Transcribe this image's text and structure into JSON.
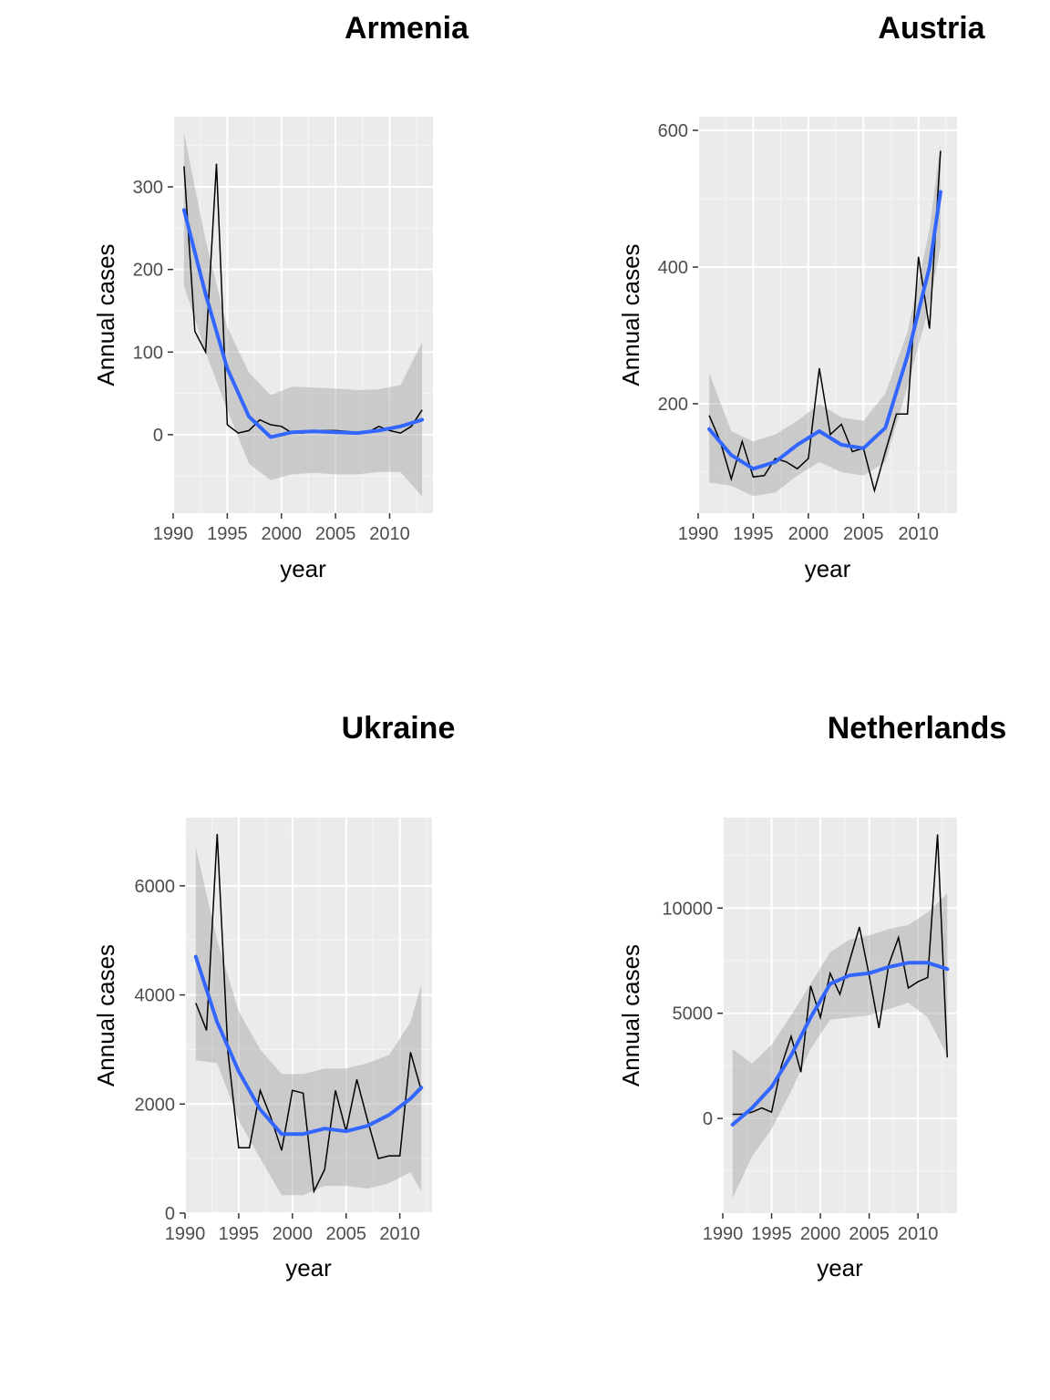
{
  "chart_data": [
    {
      "type": "line",
      "title": "Armenia",
      "xlabel": "year",
      "ylabel": "Annual cases",
      "xlim": [
        1990,
        2014
      ],
      "ylim": [
        -95,
        385
      ],
      "xticks": [
        1990,
        1995,
        2000,
        2005,
        2010
      ],
      "xtick_labels": [
        "1990",
        "1995",
        "2000",
        "2005",
        "2010"
      ],
      "yticks": [
        0,
        100,
        200,
        300
      ],
      "ytick_labels": [
        "0",
        "100",
        "200",
        "300"
      ],
      "grid": true,
      "series": [
        {
          "x": [
            1991,
            1992,
            1993,
            1994,
            1995,
            1996,
            1997,
            1998,
            1999,
            2000,
            2001,
            2002,
            2003,
            2004,
            2005,
            2006,
            2007,
            2008,
            2009,
            2010,
            2011,
            2012,
            2013
          ],
          "values": [
            325,
            125,
            100,
            328,
            12,
            2,
            5,
            18,
            12,
            10,
            2,
            2,
            5,
            5,
            5,
            4,
            3,
            3,
            10,
            5,
            2,
            10,
            30
          ]
        }
      ],
      "smooth": {
        "x": [
          1991,
          1993,
          1995,
          1997,
          1999,
          2001,
          2003,
          2005,
          2007,
          2009,
          2011,
          2013
        ],
        "y": [
          272,
          170,
          80,
          22,
          -3,
          3,
          4,
          3,
          2,
          5,
          10,
          18
        ],
        "lower": [
          180,
          100,
          30,
          -35,
          -55,
          -48,
          -46,
          -48,
          -48,
          -45,
          -45,
          -75
        ],
        "upper": [
          365,
          235,
          130,
          75,
          48,
          58,
          57,
          56,
          54,
          55,
          60,
          112
        ]
      }
    },
    {
      "type": "line",
      "title": "Austria",
      "xlabel": "year",
      "ylabel": "Annual cases",
      "xlim": [
        1990,
        2013.5
      ],
      "ylim": [
        40,
        620
      ],
      "xticks": [
        1990,
        1995,
        2000,
        2005,
        2010
      ],
      "xtick_labels": [
        "1990",
        "1995",
        "2000",
        "2005",
        "2010"
      ],
      "yticks": [
        200,
        400,
        600
      ],
      "ytick_labels": [
        "200",
        "400",
        "600"
      ],
      "grid": true,
      "series": [
        {
          "x": [
            1991,
            1992,
            1993,
            1994,
            1995,
            1996,
            1997,
            1998,
            1999,
            2000,
            2001,
            2002,
            2003,
            2004,
            2005,
            2006,
            2007,
            2008,
            2009,
            2010,
            2011,
            2012
          ],
          "values": [
            183,
            145,
            90,
            145,
            93,
            95,
            120,
            115,
            105,
            120,
            252,
            155,
            170,
            130,
            135,
            73,
            130,
            185,
            185,
            415,
            310,
            570
          ]
        }
      ],
      "smooth": {
        "x": [
          1991,
          1993,
          1995,
          1997,
          1999,
          2001,
          2003,
          2005,
          2007,
          2009,
          2011,
          2012
        ],
        "y": [
          163,
          125,
          105,
          115,
          140,
          160,
          140,
          135,
          165,
          270,
          400,
          510
        ],
        "lower": [
          85,
          80,
          65,
          70,
          95,
          115,
          100,
          95,
          115,
          225,
          345,
          430
        ],
        "upper": [
          245,
          160,
          145,
          155,
          175,
          200,
          180,
          175,
          215,
          305,
          455,
          580
        ]
      }
    },
    {
      "type": "line",
      "title": "Ukraine",
      "xlabel": "year",
      "ylabel": "Annual cases",
      "xlim": [
        1990,
        2013
      ],
      "ylim": [
        0,
        7250
      ],
      "xticks": [
        1990,
        1995,
        2000,
        2005,
        2010
      ],
      "xtick_labels": [
        "1990",
        "1995",
        "2000",
        "2005",
        "2010"
      ],
      "yticks": [
        0,
        2000,
        4000,
        6000
      ],
      "ytick_labels": [
        "0",
        "2000",
        "4000",
        "6000"
      ],
      "grid": true,
      "series": [
        {
          "x": [
            1991,
            1992,
            1993,
            1994,
            1995,
            1996,
            1997,
            1998,
            1999,
            2000,
            2001,
            2002,
            2003,
            2004,
            2005,
            2006,
            2007,
            2008,
            2009,
            2010,
            2011,
            2012
          ],
          "values": [
            3850,
            3350,
            6950,
            2950,
            1200,
            1200,
            2250,
            1750,
            1150,
            2250,
            2200,
            400,
            800,
            2250,
            1500,
            2450,
            1700,
            1000,
            1050,
            1050,
            2950,
            2250
          ]
        }
      ],
      "smooth": {
        "x": [
          1991,
          1993,
          1995,
          1997,
          1999,
          2001,
          2003,
          2005,
          2007,
          2009,
          2011,
          2012
        ],
        "y": [
          4700,
          3500,
          2600,
          1900,
          1450,
          1450,
          1550,
          1500,
          1600,
          1800,
          2100,
          2300
        ],
        "lower": [
          2800,
          2750,
          1700,
          1000,
          330,
          330,
          500,
          500,
          450,
          550,
          750,
          400
        ],
        "upper": [
          6700,
          5000,
          3700,
          3000,
          2550,
          2550,
          2650,
          2650,
          2750,
          2900,
          3500,
          4200
        ]
      }
    },
    {
      "type": "line",
      "title": "Netherlands",
      "xlabel": "year",
      "ylabel": "Annual cases",
      "xlim": [
        1990,
        2014
      ],
      "ylim": [
        -4500,
        14300
      ],
      "xticks": [
        1990,
        1995,
        2000,
        2005,
        2010
      ],
      "xtick_labels": [
        "1990",
        "1995",
        "2000",
        "2005",
        "2010"
      ],
      "yticks": [
        0,
        5000,
        10000
      ],
      "ytick_labels": [
        "0",
        "5000",
        "10000"
      ],
      "grid": true,
      "series": [
        {
          "x": [
            1991,
            1992,
            1993,
            1994,
            1995,
            1996,
            1997,
            1998,
            1999,
            2000,
            2001,
            2002,
            2003,
            2004,
            2005,
            2006,
            2007,
            2008,
            2009,
            2010,
            2011,
            2012,
            2013
          ],
          "values": [
            200,
            200,
            300,
            500,
            300,
            2500,
            3900,
            2200,
            6300,
            4800,
            6900,
            5900,
            7500,
            9100,
            6800,
            4300,
            7300,
            8600,
            6200,
            6500,
            6700,
            13500,
            2900
          ]
        }
      ],
      "smooth": {
        "x": [
          1991,
          1993,
          1995,
          1997,
          1999,
          2001,
          2003,
          2005,
          2007,
          2009,
          2011,
          2013
        ],
        "y": [
          -300,
          500,
          1500,
          3000,
          4800,
          6400,
          6800,
          6900,
          7200,
          7400,
          7400,
          7100
        ],
        "lower": [
          -3800,
          -1800,
          -500,
          1300,
          3300,
          4700,
          4800,
          4900,
          5200,
          5500,
          4800,
          3000
        ],
        "upper": [
          3300,
          2600,
          3500,
          4900,
          6400,
          7900,
          8500,
          8700,
          9000,
          9200,
          9800,
          10700
        ]
      }
    }
  ]
}
